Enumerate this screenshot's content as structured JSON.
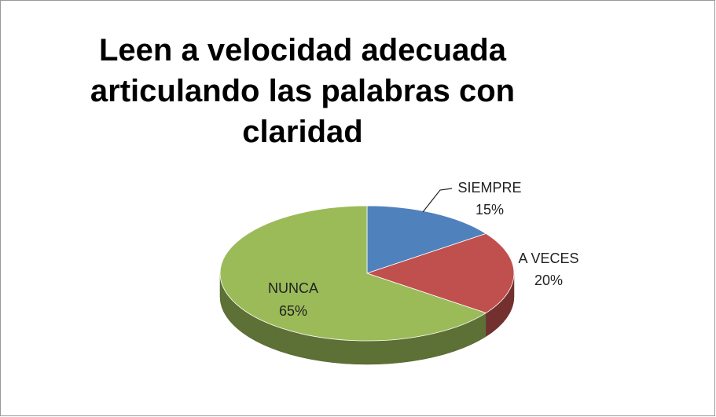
{
  "chart_data": {
    "type": "pie3d",
    "title": "Leen a velocidad adecuada articulando las palabras con claridad",
    "categories": [
      "SIEMPRE",
      "A VECES",
      "NUNCA"
    ],
    "values": [
      15,
      20,
      65
    ],
    "value_labels": [
      "15%",
      "20%",
      "65%"
    ],
    "colors": [
      "#4f81bd",
      "#c0504d",
      "#9bbb59"
    ]
  }
}
